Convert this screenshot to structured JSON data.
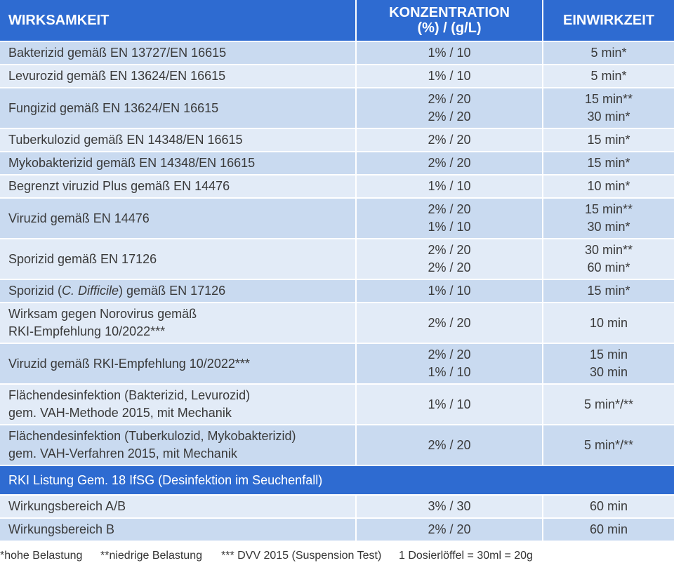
{
  "colors": {
    "header_blue": "#2e6bd1",
    "row_dark": "#c9daf0",
    "row_light": "#e2ebf7",
    "text": "#3a3a3a"
  },
  "header": {
    "col1": "WIRKSAMKEIT",
    "col2_line1": "KONZENTRATION",
    "col2_line2": "(%) / (g/L)",
    "col3": "EINWIRKZEIT"
  },
  "rows": [
    {
      "label": [
        "Bakterizid gemäß EN 13727/EN 16615"
      ],
      "conc": [
        "1% / 10"
      ],
      "time": [
        "5 min*"
      ]
    },
    {
      "label": [
        "Levurozid gemäß EN 13624/EN 16615"
      ],
      "conc": [
        "1% / 10"
      ],
      "time": [
        "5 min*"
      ]
    },
    {
      "label": [
        "Fungizid gemäß EN 13624/EN 16615"
      ],
      "conc": [
        "2% / 20",
        "2% / 20"
      ],
      "time": [
        "15 min**",
        "30 min*"
      ]
    },
    {
      "label": [
        "Tuberkulozid gemäß EN 14348/EN 16615"
      ],
      "conc": [
        "2% / 20"
      ],
      "time": [
        "15 min*"
      ]
    },
    {
      "label": [
        "Mykobakterizid gemäß EN 14348/EN 16615"
      ],
      "conc": [
        "2% / 20"
      ],
      "time": [
        "15 min*"
      ]
    },
    {
      "label": [
        "Begrenzt viruzid Plus gemäß EN 14476"
      ],
      "conc": [
        "1% / 10"
      ],
      "time": [
        "10 min*"
      ]
    },
    {
      "label": [
        "Viruzid gemäß EN 14476"
      ],
      "conc": [
        "2% / 20",
        "1% / 10"
      ],
      "time": [
        "15 min**",
        "30 min*"
      ]
    },
    {
      "label": [
        "Sporizid gemäß EN 17126"
      ],
      "conc": [
        "2% / 20",
        "2% / 20"
      ],
      "time": [
        "30 min**",
        "60 min*"
      ]
    },
    {
      "label_pre": "Sporizid (",
      "label_italic": "C. Difficile",
      "label_post": ") gemäß EN 17126",
      "conc": [
        "1% / 10"
      ],
      "time": [
        "15 min*"
      ]
    },
    {
      "label": [
        "Wirksam gegen Norovirus gemäß",
        "RKI-Empfehlung 10/2022***"
      ],
      "conc": [
        "2% / 20"
      ],
      "time": [
        "10 min"
      ]
    },
    {
      "label": [
        "Viruzid gemäß RKI-Empfehlung 10/2022***"
      ],
      "conc": [
        "2% / 20",
        "1% / 10"
      ],
      "time": [
        "15 min",
        "30 min"
      ]
    },
    {
      "label": [
        "Flächendesinfektion (Bakterizid, Levurozid)",
        "gem. VAH-Methode 2015, mit Mechanik"
      ],
      "conc": [
        "1% / 10"
      ],
      "time": [
        "5 min*/**"
      ]
    },
    {
      "label": [
        "Flächendesinfektion (Tuberkulozid, Mykobakterizid)",
        "gem. VAH-Verfahren 2015, mit Mechanik"
      ],
      "conc": [
        "2% / 20"
      ],
      "time": [
        "5 min*/**"
      ]
    }
  ],
  "section": {
    "title": "RKI Listung Gem. 18 IfSG (Desinfektion im Seuchenfall)"
  },
  "section_rows": [
    {
      "label": [
        "Wirkungsbereich A/B"
      ],
      "conc": [
        "3% / 30"
      ],
      "time": [
        "60 min"
      ]
    },
    {
      "label": [
        "Wirkungsbereich B"
      ],
      "conc": [
        "2% / 20"
      ],
      "time": [
        "60 min"
      ]
    }
  ],
  "footnotes": [
    "*hohe Belastung",
    "**niedrige Belastung",
    "*** DVV 2015 (Suspension Test)",
    "1 Dosierlöffel = 30ml = 20g"
  ]
}
